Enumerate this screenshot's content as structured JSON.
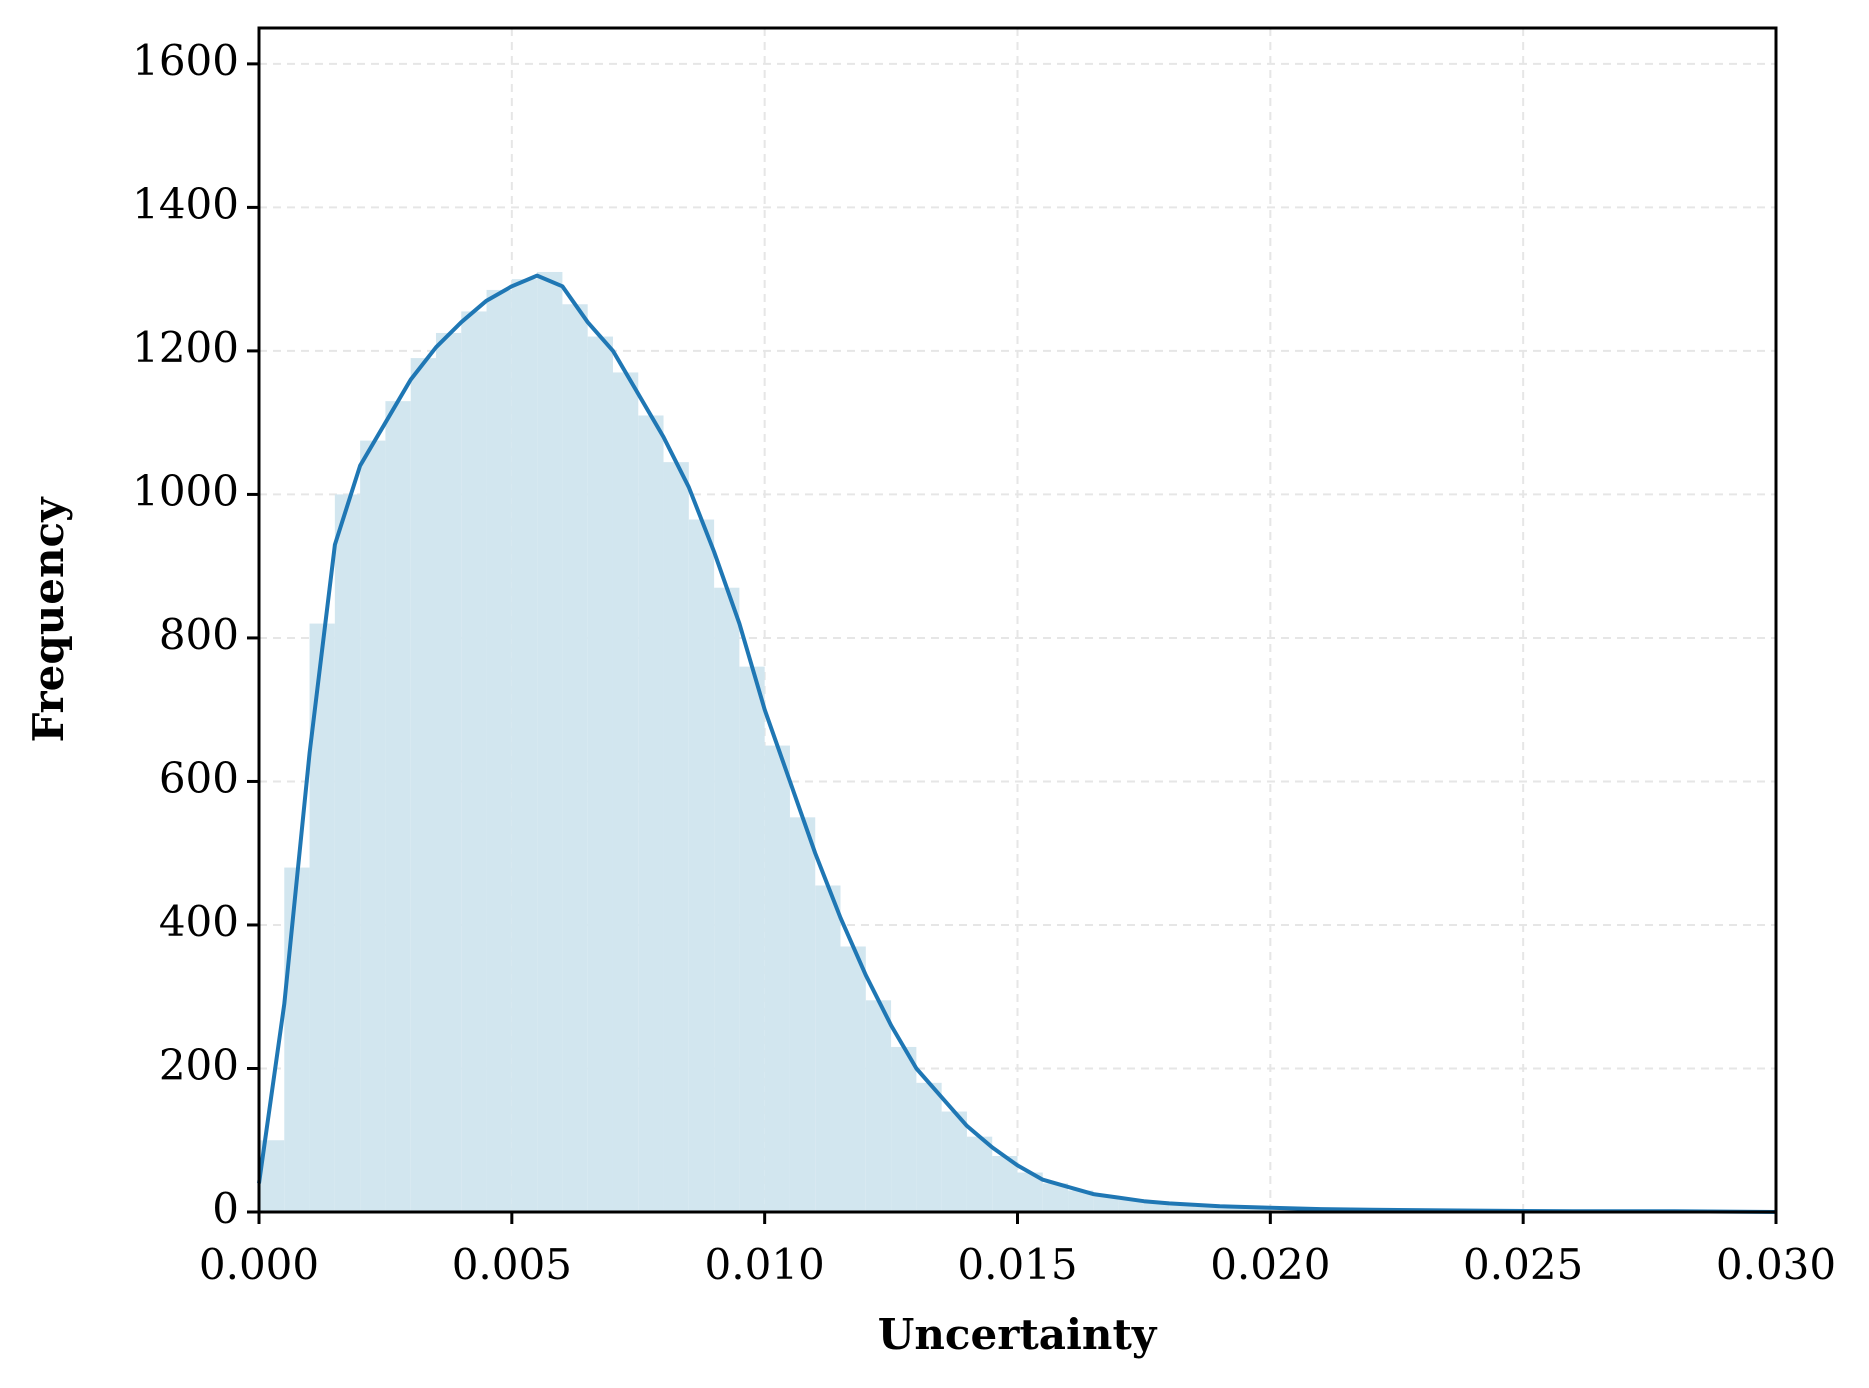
{
  "chart_data": {
    "type": "histogram",
    "xlabel": "Uncertainty",
    "ylabel": "Frequency",
    "bins": [
      0,
      0.0005,
      0.001,
      0.0015,
      0.002,
      0.0025,
      0.003,
      0.0035,
      0.004,
      0.0045,
      0.005,
      0.0055,
      0.006,
      0.0065,
      0.007,
      0.0075,
      0.008,
      0.0085,
      0.009,
      0.0095,
      0.01,
      0.0105,
      0.011,
      0.0115,
      0.012,
      0.0125,
      0.013,
      0.0135,
      0.014,
      0.0145,
      0.015,
      0.0155,
      0.016,
      0.0165,
      0.017,
      0.0175,
      0.018,
      0.0185,
      0.019,
      0.0195,
      0.02
    ],
    "counts": [
      100,
      480,
      820,
      1000,
      1075,
      1130,
      1190,
      1225,
      1255,
      1285,
      1300,
      1310,
      1265,
      1220,
      1170,
      1110,
      1045,
      965,
      870,
      760,
      650,
      550,
      455,
      370,
      295,
      230,
      180,
      140,
      105,
      78,
      55,
      40,
      30,
      22,
      17,
      13,
      10,
      7,
      5,
      4
    ],
    "color": "#d2e6ef",
    "kde": {
      "color": "#1f77b4",
      "x": [
        0,
        0.0005,
        0.001,
        0.0015,
        0.002,
        0.0025,
        0.003,
        0.0035,
        0.004,
        0.0045,
        0.005,
        0.0055,
        0.006,
        0.0065,
        0.007,
        0.0075,
        0.008,
        0.0085,
        0.009,
        0.0095,
        0.01,
        0.0105,
        0.011,
        0.0115,
        0.012,
        0.0125,
        0.013,
        0.0135,
        0.014,
        0.0145,
        0.015,
        0.0155,
        0.016,
        0.0165,
        0.017,
        0.0175,
        0.018,
        0.019,
        0.02,
        0.021,
        0.022,
        0.024,
        0.026,
        0.028,
        0.03
      ],
      "y": [
        40,
        290,
        640,
        930,
        1040,
        1100,
        1160,
        1205,
        1240,
        1270,
        1290,
        1305,
        1290,
        1240,
        1200,
        1140,
        1080,
        1010,
        920,
        820,
        700,
        600,
        500,
        410,
        330,
        260,
        200,
        160,
        120,
        90,
        65,
        45,
        35,
        25,
        20,
        15,
        12,
        8,
        6,
        4,
        3,
        2,
        1,
        1,
        0
      ]
    },
    "xlim": [
      0,
      0.03
    ],
    "xticks": [
      {
        "value": 0,
        "label": "0.000"
      },
      {
        "value": 0.005,
        "label": "0.005"
      },
      {
        "value": 0.01,
        "label": "0.010"
      },
      {
        "value": 0.015,
        "label": "0.015"
      },
      {
        "value": 0.02,
        "label": "0.020"
      },
      {
        "value": 0.025,
        "label": "0.025"
      },
      {
        "value": 0.03,
        "label": "0.030"
      }
    ],
    "ylim": [
      0,
      1650
    ],
    "yticks": [
      0,
      200,
      400,
      600,
      800,
      1000,
      1200,
      1400,
      1600
    ],
    "grid": true
  }
}
